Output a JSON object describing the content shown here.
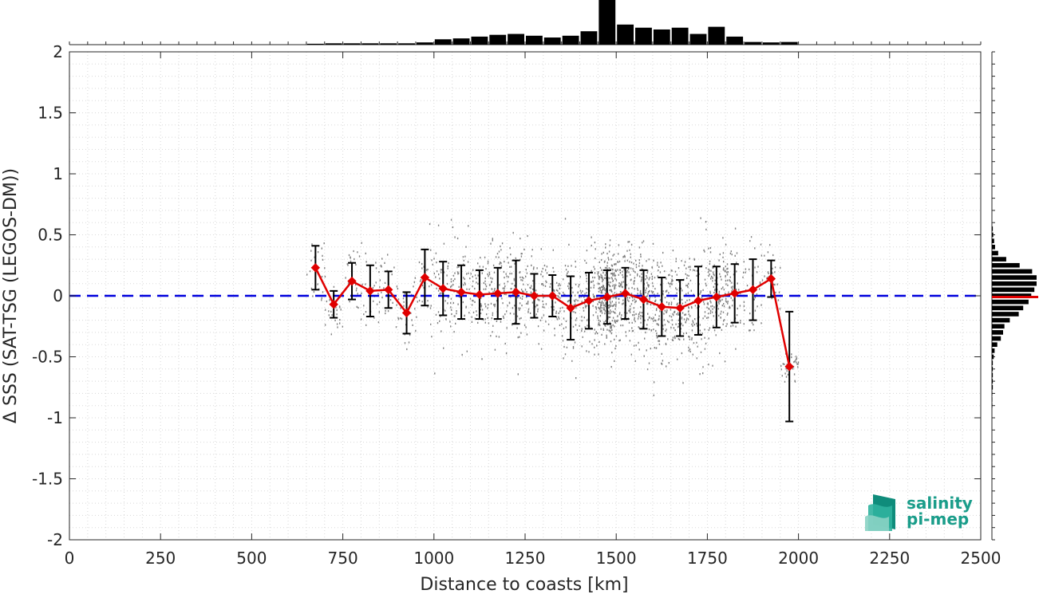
{
  "chart_data": {
    "type": "scatter",
    "xlabel": "Distance to coasts [km]",
    "ylabel": "Δ SSS (SAT-TSG (LEGOS-DM))",
    "xlim": [
      0,
      2500
    ],
    "ylim": [
      -2,
      2
    ],
    "x_ticks": [
      0,
      250,
      500,
      750,
      1000,
      1250,
      1500,
      1750,
      2000,
      2250,
      2500
    ],
    "y_ticks": [
      -2,
      -1.5,
      -1,
      -0.5,
      0,
      0.5,
      1,
      1.5,
      2
    ],
    "grid": true,
    "reference_line": {
      "y": 0,
      "color": "#0000dd",
      "style": "dashed"
    },
    "binned_mean": {
      "color": "#e00000",
      "x": [
        675,
        725,
        775,
        825,
        875,
        925,
        975,
        1025,
        1075,
        1125,
        1175,
        1225,
        1275,
        1325,
        1375,
        1425,
        1475,
        1525,
        1575,
        1625,
        1675,
        1725,
        1775,
        1825,
        1875,
        1925,
        1975
      ],
      "mean": [
        0.23,
        -0.07,
        0.12,
        0.04,
        0.05,
        -0.14,
        0.15,
        0.06,
        0.03,
        0.01,
        0.02,
        0.03,
        0.0,
        0.0,
        -0.1,
        -0.04,
        -0.01,
        0.02,
        -0.03,
        -0.09,
        -0.1,
        -0.04,
        -0.01,
        0.02,
        0.05,
        0.14,
        -0.58
      ],
      "std": [
        0.18,
        0.11,
        0.15,
        0.21,
        0.15,
        0.17,
        0.23,
        0.22,
        0.22,
        0.2,
        0.21,
        0.26,
        0.18,
        0.17,
        0.26,
        0.23,
        0.22,
        0.21,
        0.24,
        0.24,
        0.23,
        0.28,
        0.25,
        0.24,
        0.25,
        0.15,
        0.45
      ]
    },
    "scatter": {
      "color": "#808080",
      "description_range_x": [
        650,
        2000
      ],
      "approx_spread": [
        -0.9,
        0.8
      ]
    },
    "top_histogram": {
      "bin_centers": [
        675,
        725,
        775,
        825,
        875,
        925,
        975,
        1025,
        1075,
        1125,
        1175,
        1225,
        1275,
        1325,
        1375,
        1425,
        1475,
        1525,
        1575,
        1625,
        1675,
        1725,
        1775,
        1825,
        1875,
        1925,
        1975
      ],
      "relative_counts": [
        0.02,
        0.03,
        0.03,
        0.03,
        0.03,
        0.03,
        0.05,
        0.12,
        0.14,
        0.18,
        0.22,
        0.24,
        0.2,
        0.16,
        0.2,
        0.3,
        1.0,
        0.45,
        0.38,
        0.34,
        0.38,
        0.24,
        0.4,
        0.18,
        0.06,
        0.05,
        0.06
      ]
    },
    "right_histogram": {
      "bin_centers": [
        0.55,
        0.5,
        0.45,
        0.4,
        0.35,
        0.3,
        0.25,
        0.2,
        0.15,
        0.1,
        0.05,
        0.0,
        -0.05,
        -0.1,
        -0.15,
        -0.2,
        -0.25,
        -0.3,
        -0.35,
        -0.4,
        -0.45,
        -0.5,
        -0.55,
        -0.6,
        -0.65,
        -0.7,
        -0.75,
        -0.8,
        -0.85,
        -0.9
      ],
      "relative_counts": [
        0.02,
        0.03,
        0.05,
        0.07,
        0.14,
        0.32,
        0.62,
        0.9,
        1.0,
        1.0,
        0.95,
        0.88,
        0.82,
        0.7,
        0.6,
        0.4,
        0.28,
        0.25,
        0.2,
        0.12,
        0.06,
        0.04,
        0.02,
        0.02,
        0.02,
        0.02,
        0.02,
        0.01,
        0.01,
        0.01
      ],
      "mean_line_color": "#e00000",
      "mean_line_y": -0.01
    }
  },
  "logo": {
    "line1": "salinity",
    "line2": "pi-mep",
    "color": "#1a9d8a"
  }
}
